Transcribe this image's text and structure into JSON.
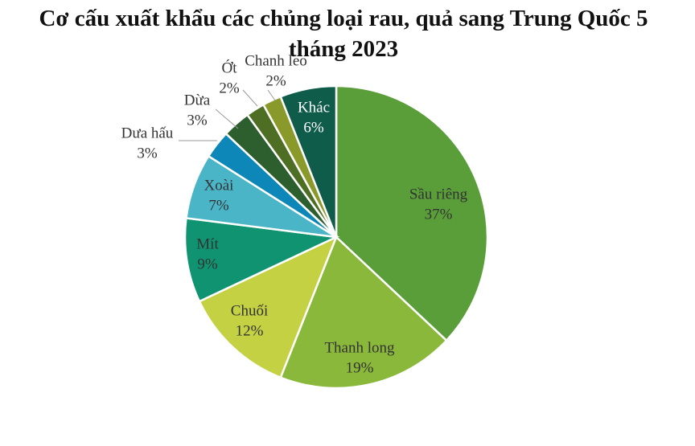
{
  "chart_data": {
    "type": "pie",
    "title": "Cơ cấu xuất khẩu các chủng loại rau, quả sang Trung Quốc 5 tháng 2023",
    "categories": [
      "Sầu riêng",
      "Thanh long",
      "Chuối",
      "Mít",
      "Xoài",
      "Dưa hấu",
      "Dừa",
      "Ớt",
      "Chanh leo",
      "Khác"
    ],
    "values": [
      37,
      19,
      12,
      9,
      7,
      3,
      3,
      2,
      2,
      6
    ],
    "value_labels": [
      "37%",
      "19%",
      "12%",
      "9%",
      "7%",
      "3%",
      "3%",
      "2%",
      "2%",
      "6%"
    ],
    "colors": [
      "#5a9e3a",
      "#8ab83a",
      "#c3d143",
      "#0f9370",
      "#4bb5c8",
      "#0d87b8",
      "#2d5e2e",
      "#4d6e23",
      "#8a9a2a",
      "#0f5c4a"
    ]
  }
}
